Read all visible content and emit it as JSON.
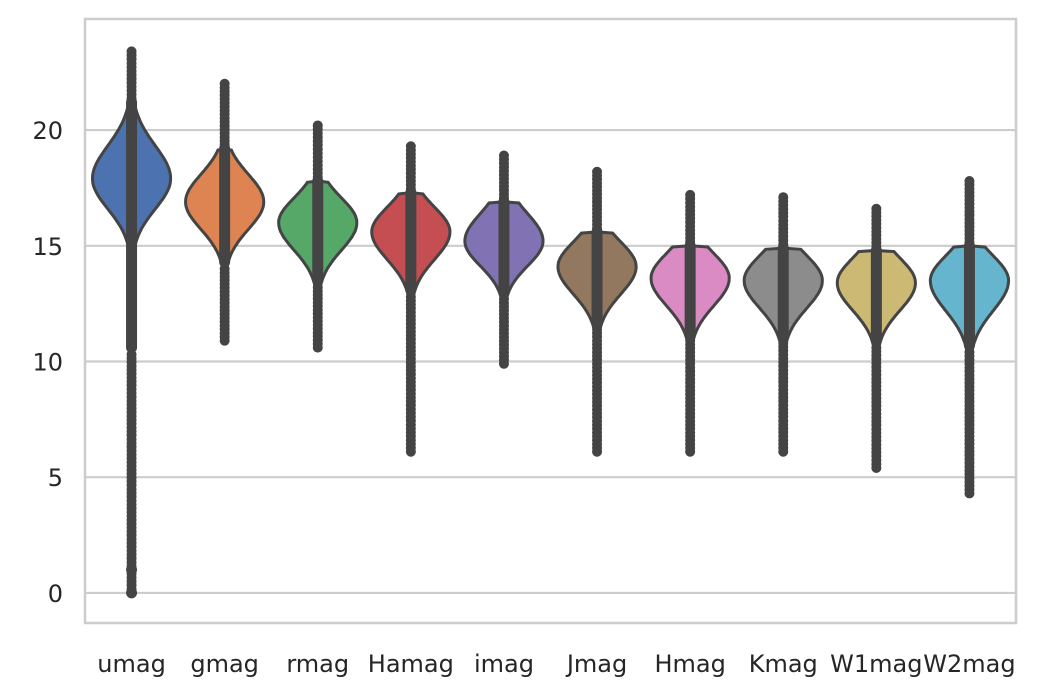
{
  "chart_data": {
    "type": "violin",
    "title": "",
    "xlabel": "",
    "ylabel": "",
    "ylim": [
      -1.3,
      24.8
    ],
    "yticks": [
      0,
      5,
      10,
      15,
      20
    ],
    "grid": true,
    "legend": "none",
    "categories": [
      {
        "name": "umag",
        "color": "#4C72B0",
        "min": 0.0,
        "max": 23.4,
        "q1": 17.1,
        "median": 17.9,
        "q3": 18.8,
        "mode": 17.9,
        "whisker_low": 10.3,
        "whisker_high": 21.2,
        "tail_max": 23.4,
        "outliers": [
          0.0,
          1.0
        ]
      },
      {
        "name": "gmag",
        "color": "#DD8452",
        "min": 10.9,
        "max": 22.0,
        "q1": 16.2,
        "median": 16.9,
        "q3": 17.6,
        "mode": 16.9,
        "whisker_low": 14.0,
        "whisker_high": 19.2,
        "tail_max": 22.0,
        "outliers": []
      },
      {
        "name": "rmag",
        "color": "#55A868",
        "min": 10.6,
        "max": 20.2,
        "q1": 15.3,
        "median": 16.0,
        "q3": 16.6,
        "mode": 16.0,
        "whisker_low": 13.2,
        "whisker_high": 17.8,
        "tail_max": 20.2,
        "outliers": []
      },
      {
        "name": "Hamag",
        "color": "#C44E52",
        "min": 6.1,
        "max": 19.3,
        "q1": 14.9,
        "median": 15.6,
        "q3": 16.2,
        "mode": 15.6,
        "whisker_low": 12.8,
        "whisker_high": 17.3,
        "tail_max": 19.3,
        "outliers": []
      },
      {
        "name": "imag",
        "color": "#8172B3",
        "min": 9.9,
        "max": 18.9,
        "q1": 14.6,
        "median": 15.2,
        "q3": 15.9,
        "mode": 15.2,
        "whisker_low": 12.7,
        "whisker_high": 16.9,
        "tail_max": 18.9,
        "outliers": []
      },
      {
        "name": "Jmag",
        "color": "#937860",
        "min": 6.1,
        "max": 18.2,
        "q1": 13.4,
        "median": 14.1,
        "q3": 14.7,
        "mode": 14.1,
        "whisker_low": 11.4,
        "whisker_high": 15.6,
        "tail_max": 18.2,
        "outliers": []
      },
      {
        "name": "Hmag",
        "color": "#DA8BC3",
        "min": 6.1,
        "max": 17.2,
        "q1": 12.9,
        "median": 13.6,
        "q3": 14.2,
        "mode": 13.6,
        "whisker_low": 10.9,
        "whisker_high": 15.0,
        "tail_max": 17.2,
        "outliers": []
      },
      {
        "name": "Kmag",
        "color": "#8C8C8C",
        "min": 6.1,
        "max": 17.1,
        "q1": 12.8,
        "median": 13.5,
        "q3": 14.1,
        "mode": 13.5,
        "whisker_low": 10.8,
        "whisker_high": 14.9,
        "tail_max": 17.1,
        "outliers": []
      },
      {
        "name": "W1mag",
        "color": "#CCB974",
        "min": 5.4,
        "max": 16.6,
        "q1": 12.7,
        "median": 13.4,
        "q3": 14.0,
        "mode": 13.4,
        "whisker_low": 10.6,
        "whisker_high": 14.8,
        "tail_max": 16.6,
        "outliers": []
      },
      {
        "name": "W2mag",
        "color": "#64B5CD",
        "min": 4.3,
        "max": 17.8,
        "q1": 12.7,
        "median": 13.5,
        "q3": 14.1,
        "mode": 13.5,
        "whisker_low": 10.4,
        "whisker_high": 15.0,
        "tail_max": 17.8,
        "outliers": []
      }
    ]
  }
}
